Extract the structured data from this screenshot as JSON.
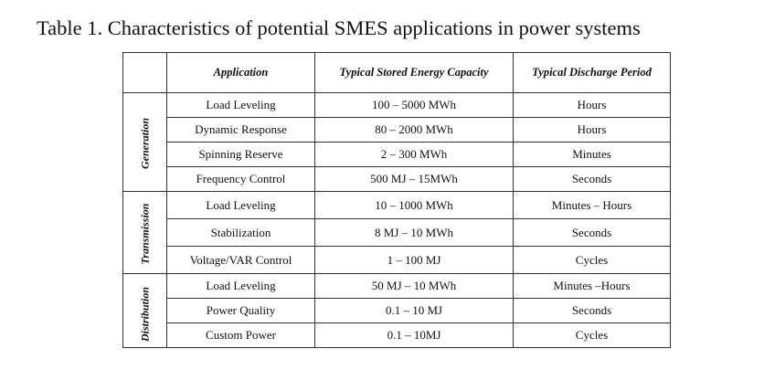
{
  "title": "Table 1. Characteristics of potential SMES applications in power systems",
  "headers": [
    "",
    "Application",
    "Typical Stored Energy Capacity",
    "Typical Discharge Period"
  ],
  "groups": [
    {
      "name": "Generation",
      "rows": [
        [
          "Load Leveling",
          "100 – 5000 MWh",
          "Hours"
        ],
        [
          "Dynamic Response",
          "80 – 2000 MWh",
          "Hours"
        ],
        [
          "Spinning Reserve",
          "2 – 300 MWh",
          "Minutes"
        ],
        [
          "Frequency Control",
          "500 MJ – 15MWh",
          "Seconds"
        ]
      ]
    },
    {
      "name": "Transmission",
      "rows": [
        [
          "Load Leveling",
          "10 – 1000 MWh",
          "Minutes – Hours"
        ],
        [
          "Stabilization",
          "8 MJ – 10 MWh",
          "Seconds"
        ],
        [
          "Voltage/VAR Control",
          "1 – 100 MJ",
          "Cycles"
        ]
      ]
    },
    {
      "name": "Distribution",
      "rows": [
        [
          "Load Leveling",
          "50 MJ – 10 MWh",
          "Minutes –Hours"
        ],
        [
          "Power Quality",
          "0.1 – 10 MJ",
          "Seconds"
        ],
        [
          "Custom Power",
          "0.1 – 10MJ",
          "Cycles"
        ]
      ]
    }
  ]
}
